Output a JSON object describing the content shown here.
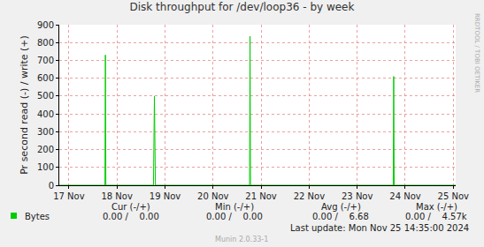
{
  "chart_data": {
    "type": "line",
    "title": "Disk throughput for /dev/loop36 - by week",
    "y_label": "Pr second read (-) / write (+)",
    "x": [
      16.8,
      17.75,
      17.76,
      17.77,
      18.76,
      18.78,
      18.8,
      20.76,
      20.77,
      20.78,
      23.75,
      23.76,
      23.77,
      25.05
    ],
    "series": [
      {
        "name": "Bytes",
        "color": "#00cc00",
        "values": [
          0,
          0,
          730,
          0,
          0,
          500,
          0,
          0,
          835,
          0,
          0,
          610,
          0,
          0
        ]
      }
    ],
    "xlim": [
      16.8,
      25.05
    ],
    "xticks": [
      {
        "value": 17,
        "label": "17 Nov"
      },
      {
        "value": 18,
        "label": "18 Nov"
      },
      {
        "value": 19,
        "label": "19 Nov"
      },
      {
        "value": 20,
        "label": "20 Nov"
      },
      {
        "value": 21,
        "label": "21 Nov"
      },
      {
        "value": 22,
        "label": "22 Nov"
      },
      {
        "value": 23,
        "label": "23 Nov"
      },
      {
        "value": 24,
        "label": "24 Nov"
      },
      {
        "value": 25,
        "label": "25 Nov"
      }
    ],
    "ylim": [
      0,
      900
    ],
    "yticks": [
      0,
      100,
      200,
      300,
      400,
      500,
      600,
      700,
      800,
      900
    ],
    "grid": true,
    "summary": {
      "columns": [
        "Cur (-/+)",
        "Min (-/+)",
        "Avg (-/+)",
        "Max (-/+)"
      ],
      "rows": [
        [
          "0.00 /    0.00",
          "0.00 /    0.00",
          "0.00 /    6.68",
          "0.00 /    4.57k"
        ]
      ]
    },
    "last_update": "Last update: Mon Nov 25 14:35:00 2024",
    "footer": "Munin 2.0.33-1",
    "watermark": "RRDTOOL / TOBI OETIKER"
  }
}
